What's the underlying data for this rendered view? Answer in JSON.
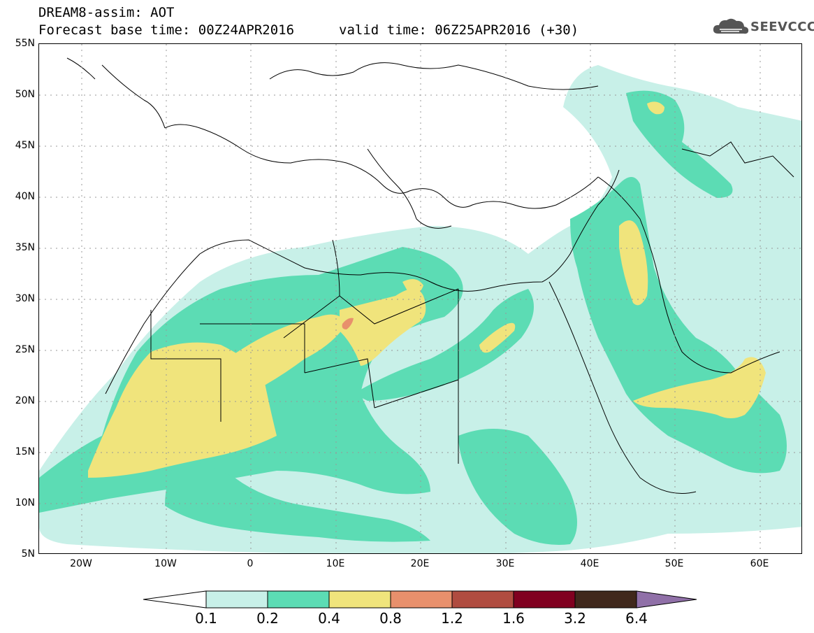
{
  "header": {
    "title": "DREAM8-assim: AOT",
    "base_time": "Forecast base time: 00Z24APR2016",
    "valid_time": "valid time: 06Z25APR2016 (+30)",
    "logo_text": "SEEVCCC"
  },
  "map": {
    "projection": "lat-lon",
    "lon_range": [
      -25,
      65
    ],
    "lat_range": [
      5,
      55
    ],
    "lat_labels": [
      "55N",
      "50N",
      "45N",
      "40N",
      "35N",
      "30N",
      "25N",
      "20N",
      "15N",
      "10N",
      "5N"
    ],
    "lon_labels": [
      "20W",
      "10W",
      "0",
      "10E",
      "20E",
      "30E",
      "40E",
      "50E",
      "60E"
    ],
    "field": "Aerosol Optical Thickness"
  },
  "colorbar": {
    "labels": [
      "0.1",
      "0.2",
      "0.4",
      "0.8",
      "1.2",
      "1.6",
      "3.2",
      "6.4"
    ],
    "colors": [
      "#c8f0e8",
      "#5cdcb4",
      "#f0e47c",
      "#e8906c",
      "#b04c40",
      "#800020",
      "#40281c",
      "#9070a8"
    ]
  }
}
